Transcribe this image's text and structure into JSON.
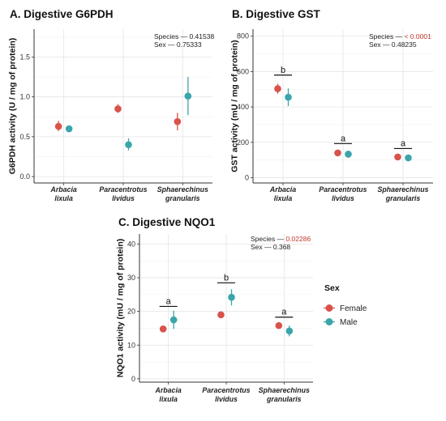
{
  "colors": {
    "female": "#D8534B",
    "male": "#3AA5AA"
  },
  "legend": {
    "title": "Sex",
    "items": [
      {
        "label": "Female",
        "color": "#D8534B"
      },
      {
        "label": "Male",
        "color": "#3AA5AA"
      }
    ]
  },
  "chart_data": [
    {
      "type": "scatter",
      "title": "A. Digestive G6PDH",
      "ylabel": "G6PDH activity (U / mg  of protein)",
      "ylim": [
        -0.08,
        1.85
      ],
      "yticks": [
        0.0,
        0.5,
        1.0,
        1.5
      ],
      "ytick_labels": [
        "0.0",
        "0.5",
        "1.0",
        "1.5"
      ],
      "categories": [
        [
          "Arbacia",
          "lixula"
        ],
        [
          "Paracentrotus",
          "lividus"
        ],
        [
          "Sphaerechinus",
          "granularis"
        ]
      ],
      "series": [
        {
          "name": "Female",
          "values": [
            0.63,
            0.85,
            0.69
          ],
          "err_low": [
            0.57,
            0.8,
            0.58
          ],
          "err_high": [
            0.7,
            0.91,
            0.8
          ]
        },
        {
          "name": "Male",
          "values": [
            0.6,
            0.4,
            1.01
          ],
          "err_low": [
            0.56,
            0.33,
            0.77
          ],
          "err_high": [
            0.64,
            0.48,
            1.25
          ]
        }
      ],
      "stats": [
        {
          "label": "Species — ",
          "value": "0.41538",
          "highlight": false
        },
        {
          "label": "Sex — ",
          "value": "0.75333",
          "highlight": false
        }
      ],
      "letters": []
    },
    {
      "type": "scatter",
      "title": "B. Digestive GST",
      "ylabel": "GST activity (mU / mg  of protein)",
      "ylim": [
        -30,
        840
      ],
      "yticks": [
        0,
        200,
        400,
        600,
        800
      ],
      "ytick_labels": [
        "0",
        "200",
        "400",
        "600",
        "800"
      ],
      "categories": [
        [
          "Arbacia",
          "lixula"
        ],
        [
          "Paracentrotus",
          "lividus"
        ],
        [
          "Sphaerechinus",
          "granularis"
        ]
      ],
      "series": [
        {
          "name": "Female",
          "values": [
            503,
            140,
            117
          ],
          "err_low": [
            475,
            128,
            110
          ],
          "err_high": [
            531,
            152,
            124
          ]
        },
        {
          "name": "Male",
          "values": [
            455,
            133,
            112
          ],
          "err_low": [
            405,
            113,
            104
          ],
          "err_high": [
            505,
            153,
            120
          ]
        }
      ],
      "stats": [
        {
          "label": "Species — ",
          "value": "< 0.0001",
          "highlight": true
        },
        {
          "label": "Sex — ",
          "value": "0.48235",
          "highlight": false
        }
      ],
      "letters": [
        {
          "text": "b",
          "y": 580
        },
        {
          "text": "a",
          "y": 193
        },
        {
          "text": "a",
          "y": 165
        }
      ]
    },
    {
      "type": "scatter",
      "title": "C. Digestive NQO1",
      "ylabel": "NQO1 activity (mU / mg  of protein)",
      "ylim": [
        -1,
        43
      ],
      "yticks": [
        0,
        10,
        20,
        30,
        40
      ],
      "ytick_labels": [
        "0",
        "10",
        "20",
        "30",
        "40"
      ],
      "categories": [
        [
          "Arbacia",
          "lixula"
        ],
        [
          "Paracentrotus",
          "lividus"
        ],
        [
          "Sphaerechinus",
          "granularis"
        ]
      ],
      "series": [
        {
          "name": "Female",
          "values": [
            14.8,
            19.0,
            15.8
          ],
          "err_low": [
            14.3,
            18.5,
            15.0
          ],
          "err_high": [
            15.3,
            19.5,
            16.6
          ]
        },
        {
          "name": "Male",
          "values": [
            17.5,
            24.2,
            14.2
          ],
          "err_low": [
            14.8,
            21.8,
            12.6
          ],
          "err_high": [
            20.2,
            26.6,
            15.8
          ]
        }
      ],
      "stats": [
        {
          "label": "Species — ",
          "value": "0.02286",
          "highlight": true
        },
        {
          "label": "Sex — ",
          "value": "0.368",
          "highlight": false
        }
      ],
      "letters": [
        {
          "text": "a",
          "y": 21.5
        },
        {
          "text": "b",
          "y": 28.5
        },
        {
          "text": "a",
          "y": 18.3
        }
      ]
    }
  ]
}
